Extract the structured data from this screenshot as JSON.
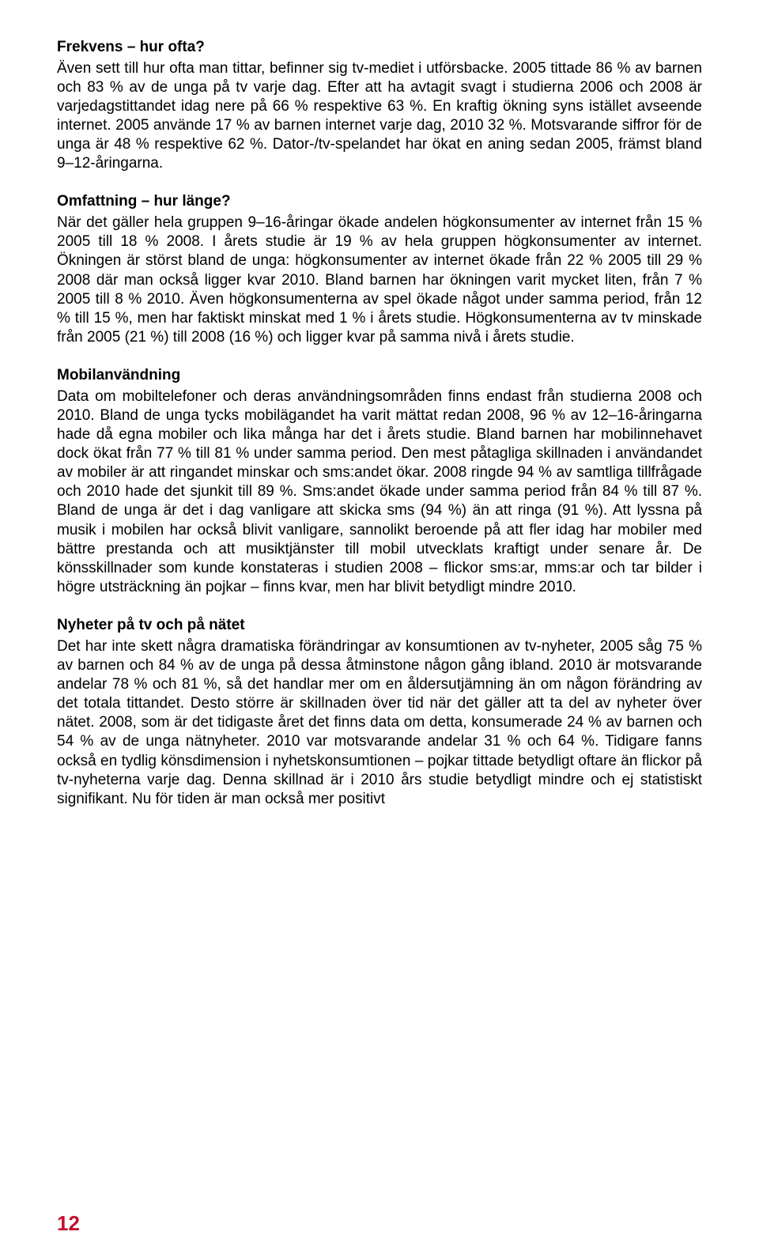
{
  "sections": {
    "frekvens": {
      "heading": "Frekvens – hur ofta?",
      "body": "Även sett till hur ofta man tittar, befinner sig tv-mediet i utförsbacke. 2005 tittade 86 % av barnen och 83 % av de unga på tv varje dag. Efter att ha avtagit svagt i studierna 2006 och 2008 är varjedagstittandet idag nere på 66 % respektive 63 %. En kraftig ökning syns istället avseende internet. 2005 använde 17 % av barnen internet varje dag, 2010 32 %. Motsvarande siffror för de unga är 48 % respektive 62 %. Dator-/tv-spelandet har ökat en aning sedan 2005, främst bland 9–12-åringarna."
    },
    "omfattning": {
      "heading": "Omfattning – hur länge?",
      "body": "När det gäller hela gruppen 9–16-åringar ökade andelen högkonsumenter av internet från 15 % 2005 till 18 % 2008. I årets studie är 19 % av hela gruppen högkonsumenter av internet. Ökningen är störst bland de unga: högkonsumenter av internet ökade från 22 % 2005 till 29 % 2008 där man också ligger kvar 2010. Bland barnen har ökningen varit mycket liten, från 7 % 2005 till 8 % 2010. Även högkonsumenterna av spel ökade något under samma period, från 12 % till 15 %, men har faktiskt minskat med 1 % i årets studie. Högkonsumenterna av tv minskade från 2005 (21 %) till 2008 (16 %) och ligger kvar på samma nivå i årets studie."
    },
    "mobil": {
      "heading": "Mobilanvändning",
      "body": "Data om mobiltelefoner och deras användningsområden finns endast från studierna 2008 och 2010. Bland de unga tycks mobilägandet ha varit mättat redan 2008, 96 % av 12–16-åringarna hade då egna mobiler och lika många har det i årets studie. Bland barnen har mobilinnehavet dock ökat från 77 % till 81 % under samma period. Den mest påtagliga skillnaden i användandet av mobiler är att ringandet minskar och sms:andet ökar. 2008 ringde 94 % av samtliga tillfrågade och 2010 hade det sjunkit till 89 %. Sms:andet ökade under samma period från 84 % till 87 %. Bland de unga är det i dag vanligare att skicka sms (94 %) än att ringa (91 %). Att lyssna på musik i mobilen har också blivit vanligare, sannolikt beroende på att fler idag har mobiler med bättre prestanda och att musiktjänster till mobil utvecklats kraftigt under senare år. De könsskillnader som kunde konstateras i studien 2008 – flickor sms:ar, mms:ar och tar bilder i högre utsträckning än pojkar – finns kvar, men har blivit betydligt mindre 2010."
    },
    "nyheter": {
      "heading": "Nyheter på tv och på nätet",
      "body": "Det har inte skett några dramatiska förändringar av konsumtionen av tv-nyheter, 2005 såg 75 % av barnen och 84 % av de unga på dessa åtminstone någon gång ibland. 2010 är motsvarande andelar 78 % och 81 %, så det handlar mer om en åldersutjämning än om någon förändring av det totala tittandet. Desto större är skillnaden över tid när det gäller att ta del av nyheter över nätet. 2008, som är det tidigaste året det finns data om detta, konsumerade 24 % av barnen och 54 % av de unga nätnyheter. 2010 var motsvarande andelar 31 % och 64 %. Tidigare fanns också en tydlig könsdimension i nyhetskonsumtionen – pojkar tittade betydligt oftare än flickor på tv-nyheterna varje dag. Denna skillnad är i 2010 års studie betydligt mindre och ej statistiskt signifikant. Nu för tiden är man också mer positivt"
    }
  },
  "pageNumber": "12",
  "colors": {
    "text": "#000000",
    "background": "#ffffff",
    "pageNumber": "#c40f2e"
  },
  "typography": {
    "bodyFontSize": 19,
    "headingFontSize": 19,
    "pageNumberFontSize": 26,
    "lineHeight": 1.27,
    "headingWeight": "bold",
    "fontFamily": "Arial, Helvetica, sans-serif"
  }
}
